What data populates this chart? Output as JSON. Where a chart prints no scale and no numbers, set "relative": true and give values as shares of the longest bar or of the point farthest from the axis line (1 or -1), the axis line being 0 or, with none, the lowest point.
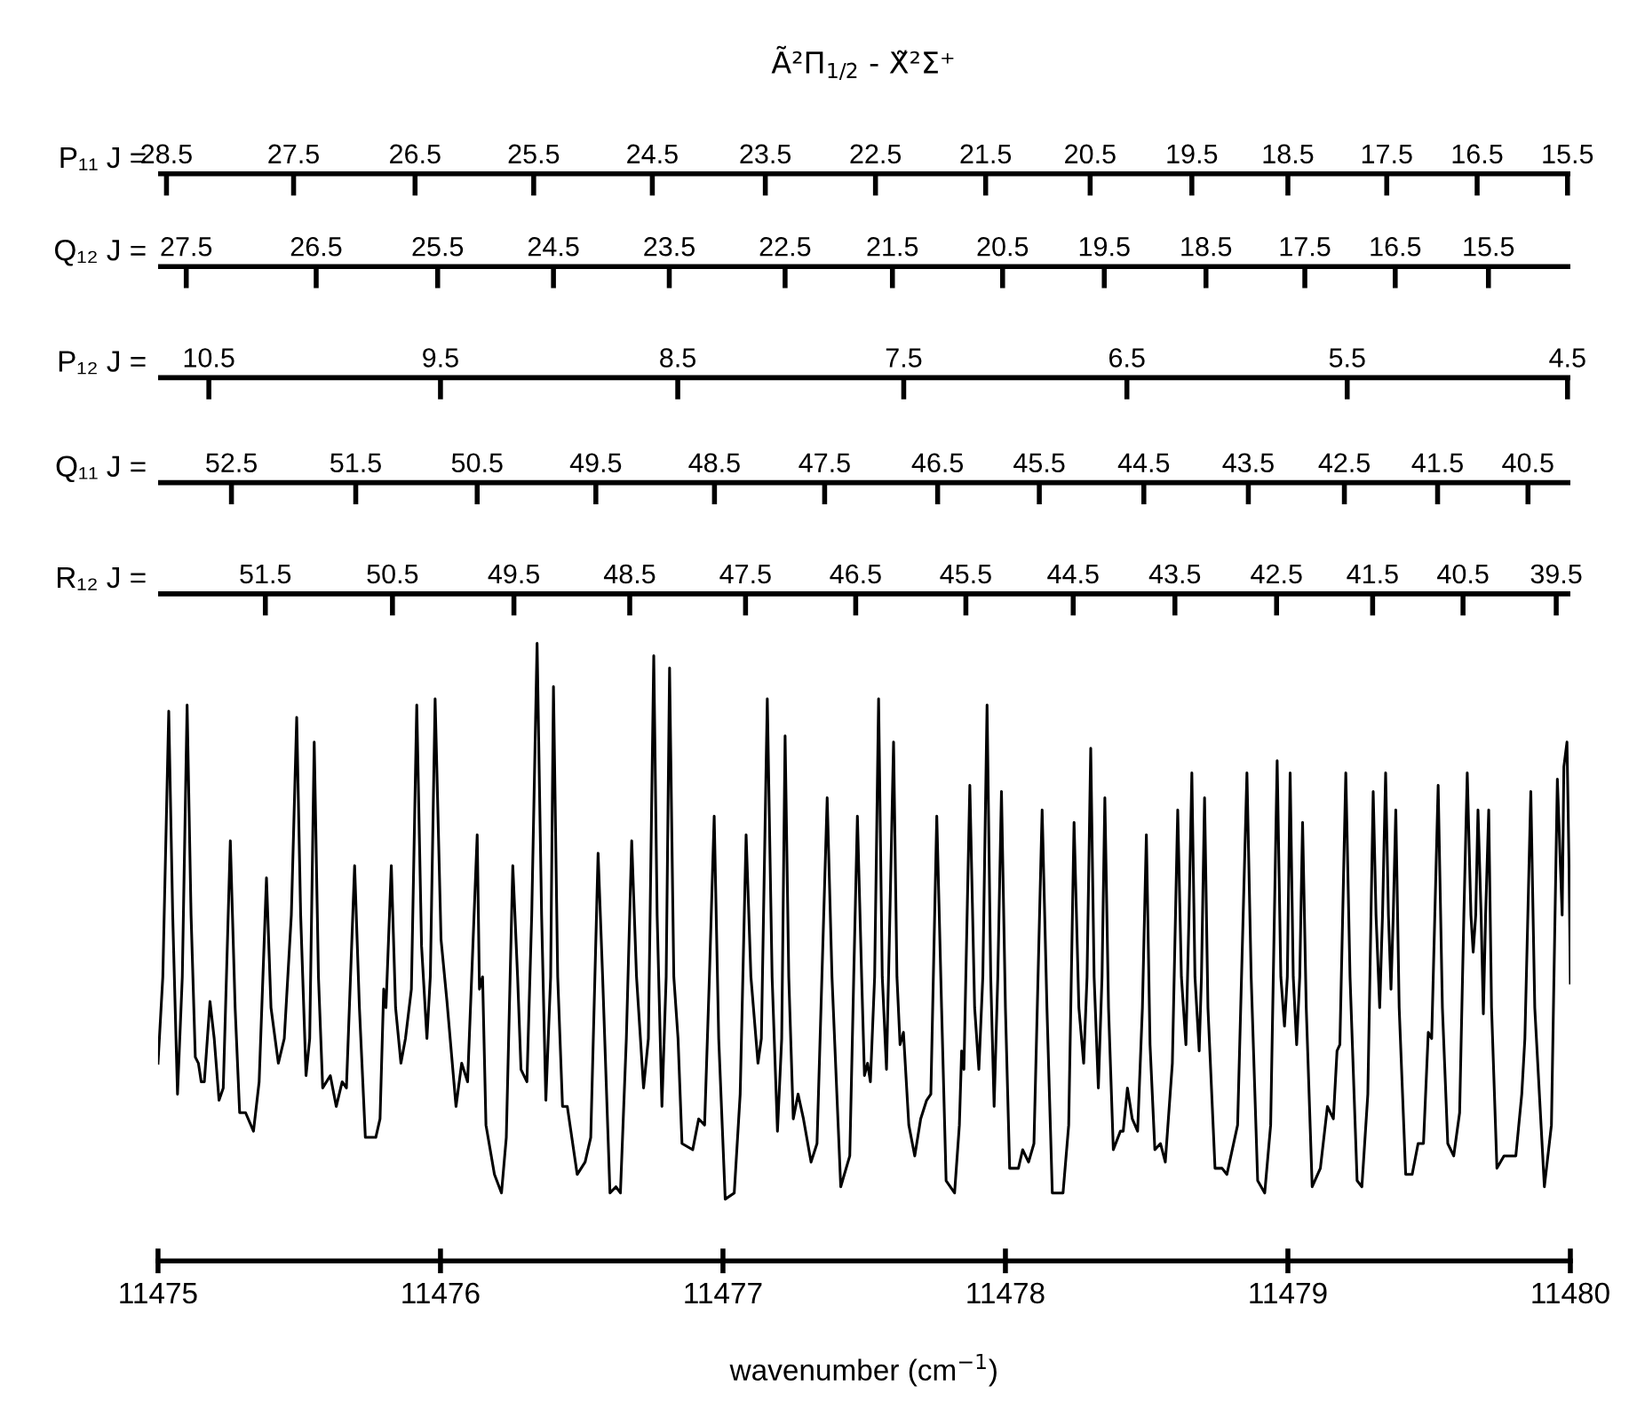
{
  "chart_data": {
    "type": "line",
    "title": "Ã²Π$_{1/2}$ - X̃²Σ⁺",
    "xlabel": "wavenumber (cm$^{−1}$)",
    "relative": true,
    "xlim": [
      11475,
      11480
    ],
    "xticks": [
      11475,
      11476,
      11477,
      11478,
      11479,
      11480
    ],
    "marker": "none",
    "line_style": "solid",
    "tick_labels": "x",
    "grid": false,
    "ref_lines": [
      {
        "axis": "y",
        "value": 1.76,
        "label": "P₁₁ J ="
      },
      {
        "axis": "y",
        "value": 1.61,
        "label": "Q₁₂ J ="
      },
      {
        "axis": "y",
        "value": 1.43,
        "label": "P₁₂ J ="
      },
      {
        "axis": "y",
        "value": 1.26,
        "label": "Q₁₁ J ="
      },
      {
        "axis": "y",
        "value": 1.08,
        "label": "R₁₂ J ="
      }
    ],
    "annotations": [
      {
        "text": "28.5",
        "x": 11475.03,
        "y": 1.76
      },
      {
        "text": "27.5",
        "x": 11475.48,
        "y": 1.76
      },
      {
        "text": "26.5",
        "x": 11475.91,
        "y": 1.76
      },
      {
        "text": "25.5",
        "x": 11476.33,
        "y": 1.76
      },
      {
        "text": "24.5",
        "x": 11476.75,
        "y": 1.76
      },
      {
        "text": "23.5",
        "x": 11477.15,
        "y": 1.76
      },
      {
        "text": "22.5",
        "x": 11477.54,
        "y": 1.76
      },
      {
        "text": "21.5",
        "x": 11477.93,
        "y": 1.76
      },
      {
        "text": "20.5",
        "x": 11478.3,
        "y": 1.76
      },
      {
        "text": "19.5",
        "x": 11478.66,
        "y": 1.76
      },
      {
        "text": "18.5",
        "x": 11479.0,
        "y": 1.76
      },
      {
        "text": "17.5",
        "x": 11479.35,
        "y": 1.76
      },
      {
        "text": "16.5",
        "x": 11479.67,
        "y": 1.76
      },
      {
        "text": "15.5",
        "x": 11479.99,
        "y": 1.76
      },
      {
        "text": "27.5",
        "x": 11475.1,
        "y": 1.61
      },
      {
        "text": "26.5",
        "x": 11475.56,
        "y": 1.61
      },
      {
        "text": "25.5",
        "x": 11475.99,
        "y": 1.61
      },
      {
        "text": "24.5",
        "x": 11476.4,
        "y": 1.61
      },
      {
        "text": "23.5",
        "x": 11476.81,
        "y": 1.61
      },
      {
        "text": "22.5",
        "x": 11477.22,
        "y": 1.61
      },
      {
        "text": "21.5",
        "x": 11477.6,
        "y": 1.61
      },
      {
        "text": "20.5",
        "x": 11477.99,
        "y": 1.61
      },
      {
        "text": "19.5",
        "x": 11478.35,
        "y": 1.61
      },
      {
        "text": "18.5",
        "x": 11478.71,
        "y": 1.61
      },
      {
        "text": "17.5",
        "x": 11479.06,
        "y": 1.61
      },
      {
        "text": "16.5",
        "x": 11479.38,
        "y": 1.61
      },
      {
        "text": "15.5",
        "x": 11479.71,
        "y": 1.61
      },
      {
        "text": "10.5",
        "x": 11475.18,
        "y": 1.43
      },
      {
        "text": "9.5",
        "x": 11476.0,
        "y": 1.43
      },
      {
        "text": "8.5",
        "x": 11476.84,
        "y": 1.43
      },
      {
        "text": "7.5",
        "x": 11477.64,
        "y": 1.43
      },
      {
        "text": "6.5",
        "x": 11478.43,
        "y": 1.43
      },
      {
        "text": "5.5",
        "x": 11479.21,
        "y": 1.43
      },
      {
        "text": "4.5",
        "x": 11479.99,
        "y": 1.43
      },
      {
        "text": "52.5",
        "x": 11475.26,
        "y": 1.26
      },
      {
        "text": "51.5",
        "x": 11475.7,
        "y": 1.26
      },
      {
        "text": "50.5",
        "x": 11476.13,
        "y": 1.26
      },
      {
        "text": "49.5",
        "x": 11476.55,
        "y": 1.26
      },
      {
        "text": "48.5",
        "x": 11476.97,
        "y": 1.26
      },
      {
        "text": "47.5",
        "x": 11477.36,
        "y": 1.26
      },
      {
        "text": "46.5",
        "x": 11477.76,
        "y": 1.26
      },
      {
        "text": "45.5",
        "x": 11478.12,
        "y": 1.26
      },
      {
        "text": "44.5",
        "x": 11478.49,
        "y": 1.26
      },
      {
        "text": "43.5",
        "x": 11478.86,
        "y": 1.26
      },
      {
        "text": "42.5",
        "x": 11479.2,
        "y": 1.26
      },
      {
        "text": "41.5",
        "x": 11479.53,
        "y": 1.26
      },
      {
        "text": "40.5",
        "x": 11479.85,
        "y": 1.26
      },
      {
        "text": "51.5",
        "x": 11475.38,
        "y": 1.08
      },
      {
        "text": "50.5",
        "x": 11475.83,
        "y": 1.08
      },
      {
        "text": "49.5",
        "x": 11476.26,
        "y": 1.08
      },
      {
        "text": "48.5",
        "x": 11476.67,
        "y": 1.08
      },
      {
        "text": "47.5",
        "x": 11477.08,
        "y": 1.08
      },
      {
        "text": "46.5",
        "x": 11477.47,
        "y": 1.08
      },
      {
        "text": "45.5",
        "x": 11477.86,
        "y": 1.08
      },
      {
        "text": "44.5",
        "x": 11478.24,
        "y": 1.08
      },
      {
        "text": "43.5",
        "x": 11478.6,
        "y": 1.08
      },
      {
        "text": "42.5",
        "x": 11478.96,
        "y": 1.08
      },
      {
        "text": "41.5",
        "x": 11479.3,
        "y": 1.08
      },
      {
        "text": "40.5",
        "x": 11479.62,
        "y": 1.08
      },
      {
        "text": "39.5",
        "x": 11479.95,
        "y": 1.08
      }
    ],
    "series": [
      {
        "color": "#000000",
        "x": [
          11475.0,
          11475.017,
          11475.038,
          11475.052,
          11475.069,
          11475.086,
          11475.103,
          11475.117,
          11475.132,
          11475.143,
          11475.153,
          11475.164,
          11475.184,
          11475.199,
          11475.216,
          11475.231,
          11475.256,
          11475.273,
          11475.289,
          11475.31,
          11475.338,
          11475.358,
          11475.384,
          11475.4,
          11475.426,
          11475.447,
          11475.472,
          11475.491,
          11475.505,
          11475.524,
          11475.537,
          11475.553,
          11475.568,
          11475.583,
          11475.61,
          11475.631,
          11475.652,
          11475.667,
          11475.696,
          11475.713,
          11475.734,
          11475.771,
          11475.786,
          11475.799,
          11475.807,
          11475.826,
          11475.841,
          11475.86,
          11475.876,
          11475.897,
          11475.916,
          11475.933,
          11475.952,
          11475.964,
          11475.981,
          11476.002,
          11476.023,
          11476.055,
          11476.075,
          11476.096,
          11476.13,
          11476.138,
          11476.149,
          11476.161,
          11476.191,
          11476.216,
          11476.233,
          11476.256,
          11476.273,
          11476.285,
          11476.306,
          11476.323,
          11476.342,
          11476.358,
          11476.373,
          11476.39,
          11476.4,
          11476.415,
          11476.432,
          11476.449,
          11476.484,
          11476.512,
          11476.532,
          11476.558,
          11476.574,
          11476.6,
          11476.621,
          11476.637,
          11476.658,
          11476.677,
          11476.694,
          11476.719,
          11476.736,
          11476.755,
          11476.767,
          11476.784,
          11476.799,
          11476.811,
          11476.826,
          11476.841,
          11476.855,
          11476.893,
          11476.914,
          11476.935,
          11476.952,
          11476.969,
          11476.985,
          11477.008,
          11477.04,
          11477.061,
          11477.082,
          11477.099,
          11477.124,
          11477.136,
          11477.157,
          11477.174,
          11477.193,
          11477.208,
          11477.22,
          11477.233,
          11477.249,
          11477.266,
          11477.285,
          11477.312,
          11477.333,
          11477.369,
          11477.386,
          11477.417,
          11477.449,
          11477.463,
          11477.476,
          11477.491,
          11477.501,
          11477.512,
          11477.522,
          11477.537,
          11477.551,
          11477.564,
          11477.579,
          11477.591,
          11477.604,
          11477.616,
          11477.627,
          11477.639,
          11477.658,
          11477.679,
          11477.7,
          11477.721,
          11477.736,
          11477.757,
          11477.774,
          11477.79,
          11477.82,
          11477.837,
          11477.845,
          11477.853,
          11477.874,
          11477.891,
          11477.906,
          11477.92,
          11477.935,
          11477.948,
          11477.96,
          11477.973,
          11477.986,
          11478.0,
          11478.015,
          11478.046,
          11478.061,
          11478.082,
          11478.101,
          11478.13,
          11478.147,
          11478.166,
          11478.204,
          11478.224,
          11478.243,
          11478.26,
          11478.277,
          11478.289,
          11478.302,
          11478.314,
          11478.329,
          11478.342,
          11478.352,
          11478.365,
          11478.382,
          11478.407,
          11478.417,
          11478.432,
          11478.449,
          11478.468,
          11478.485,
          11478.499,
          11478.512,
          11478.529,
          11478.549,
          11478.566,
          11478.591,
          11478.61,
          11478.623,
          11478.639,
          11478.65,
          11478.66,
          11478.671,
          11478.686,
          11478.694,
          11478.705,
          11478.717,
          11478.742,
          11478.767,
          11478.784,
          11478.822,
          11478.855,
          11478.87,
          11478.893,
          11478.918,
          11478.939,
          11478.962,
          11478.975,
          11478.988,
          11478.998,
          11479.008,
          11479.019,
          11479.031,
          11479.042,
          11479.052,
          11479.065,
          11479.086,
          11479.115,
          11479.14,
          11479.161,
          11479.174,
          11479.184,
          11479.205,
          11479.22,
          11479.245,
          11479.262,
          11479.283,
          11479.302,
          11479.312,
          11479.325,
          11479.335,
          11479.346,
          11479.356,
          11479.365,
          11479.373,
          11479.382,
          11479.394,
          11479.417,
          11479.44,
          11479.461,
          11479.48,
          11479.497,
          11479.509,
          11479.532,
          11479.547,
          11479.566,
          11479.587,
          11479.608,
          11479.623,
          11479.635,
          11479.648,
          11479.656,
          11479.665,
          11479.673,
          11479.684,
          11479.692,
          11479.7,
          11479.711,
          11479.721,
          11479.74,
          11479.765,
          11479.807,
          11479.828,
          11479.839,
          11479.86,
          11479.874,
          11479.908,
          11479.933,
          11479.954,
          11479.971,
          11479.977,
          11479.988,
          11479.995,
          11480.0
        ],
        "values": [
          0.32,
          0.46,
          0.89,
          0.56,
          0.27,
          0.46,
          0.9,
          0.56,
          0.33,
          0.32,
          0.29,
          0.29,
          0.42,
          0.36,
          0.26,
          0.28,
          0.68,
          0.41,
          0.24,
          0.24,
          0.21,
          0.29,
          0.62,
          0.41,
          0.32,
          0.36,
          0.56,
          0.88,
          0.56,
          0.3,
          0.36,
          0.84,
          0.46,
          0.28,
          0.3,
          0.25,
          0.29,
          0.28,
          0.64,
          0.41,
          0.2,
          0.2,
          0.23,
          0.44,
          0.41,
          0.64,
          0.41,
          0.32,
          0.36,
          0.44,
          0.9,
          0.51,
          0.36,
          0.46,
          0.91,
          0.52,
          0.42,
          0.25,
          0.32,
          0.29,
          0.69,
          0.44,
          0.46,
          0.22,
          0.14,
          0.11,
          0.2,
          0.64,
          0.46,
          0.31,
          0.29,
          0.56,
          1,
          0.56,
          0.26,
          0.46,
          0.93,
          0.46,
          0.25,
          0.25,
          0.14,
          0.16,
          0.2,
          0.66,
          0.46,
          0.11,
          0.12,
          0.11,
          0.36,
          0.68,
          0.46,
          0.28,
          0.36,
          0.98,
          0.56,
          0.25,
          0.46,
          0.96,
          0.46,
          0.36,
          0.19,
          0.18,
          0.23,
          0.22,
          0.46,
          0.72,
          0.36,
          0.1,
          0.11,
          0.27,
          0.69,
          0.46,
          0.32,
          0.36,
          0.91,
          0.46,
          0.21,
          0.36,
          0.85,
          0.46,
          0.23,
          0.27,
          0.23,
          0.16,
          0.19,
          0.75,
          0.46,
          0.12,
          0.17,
          0.46,
          0.72,
          0.46,
          0.3,
          0.32,
          0.29,
          0.46,
          0.91,
          0.46,
          0.31,
          0.56,
          0.84,
          0.46,
          0.35,
          0.37,
          0.22,
          0.17,
          0.23,
          0.26,
          0.27,
          0.72,
          0.41,
          0.13,
          0.11,
          0.22,
          0.34,
          0.31,
          0.77,
          0.41,
          0.31,
          0.46,
          0.9,
          0.46,
          0.25,
          0.46,
          0.76,
          0.41,
          0.15,
          0.15,
          0.18,
          0.16,
          0.19,
          0.73,
          0.41,
          0.11,
          0.11,
          0.22,
          0.71,
          0.41,
          0.32,
          0.46,
          0.83,
          0.46,
          0.28,
          0.46,
          0.75,
          0.41,
          0.18,
          0.21,
          0.21,
          0.28,
          0.23,
          0.21,
          0.41,
          0.69,
          0.35,
          0.18,
          0.19,
          0.16,
          0.32,
          0.73,
          0.46,
          0.35,
          0.56,
          0.79,
          0.46,
          0.34,
          0.46,
          0.75,
          0.41,
          0.15,
          0.15,
          0.14,
          0.22,
          0.79,
          0.46,
          0.13,
          0.11,
          0.22,
          0.81,
          0.46,
          0.38,
          0.46,
          0.79,
          0.46,
          0.35,
          0.46,
          0.71,
          0.41,
          0.12,
          0.15,
          0.25,
          0.23,
          0.34,
          0.35,
          0.79,
          0.46,
          0.13,
          0.12,
          0.27,
          0.76,
          0.56,
          0.41,
          0.56,
          0.79,
          0.56,
          0.44,
          0.56,
          0.73,
          0.41,
          0.14,
          0.14,
          0.19,
          0.19,
          0.37,
          0.36,
          0.77,
          0.41,
          0.19,
          0.17,
          0.24,
          0.56,
          0.79,
          0.56,
          0.5,
          0.56,
          0.73,
          0.56,
          0.4,
          0.56,
          0.73,
          0.41,
          0.15,
          0.17,
          0.17,
          0.27,
          0.36,
          0.76,
          0.41,
          0.12,
          0.22,
          0.78,
          0.56,
          0.8,
          0.84,
          0.65,
          0.45
        ]
      }
    ]
  }
}
